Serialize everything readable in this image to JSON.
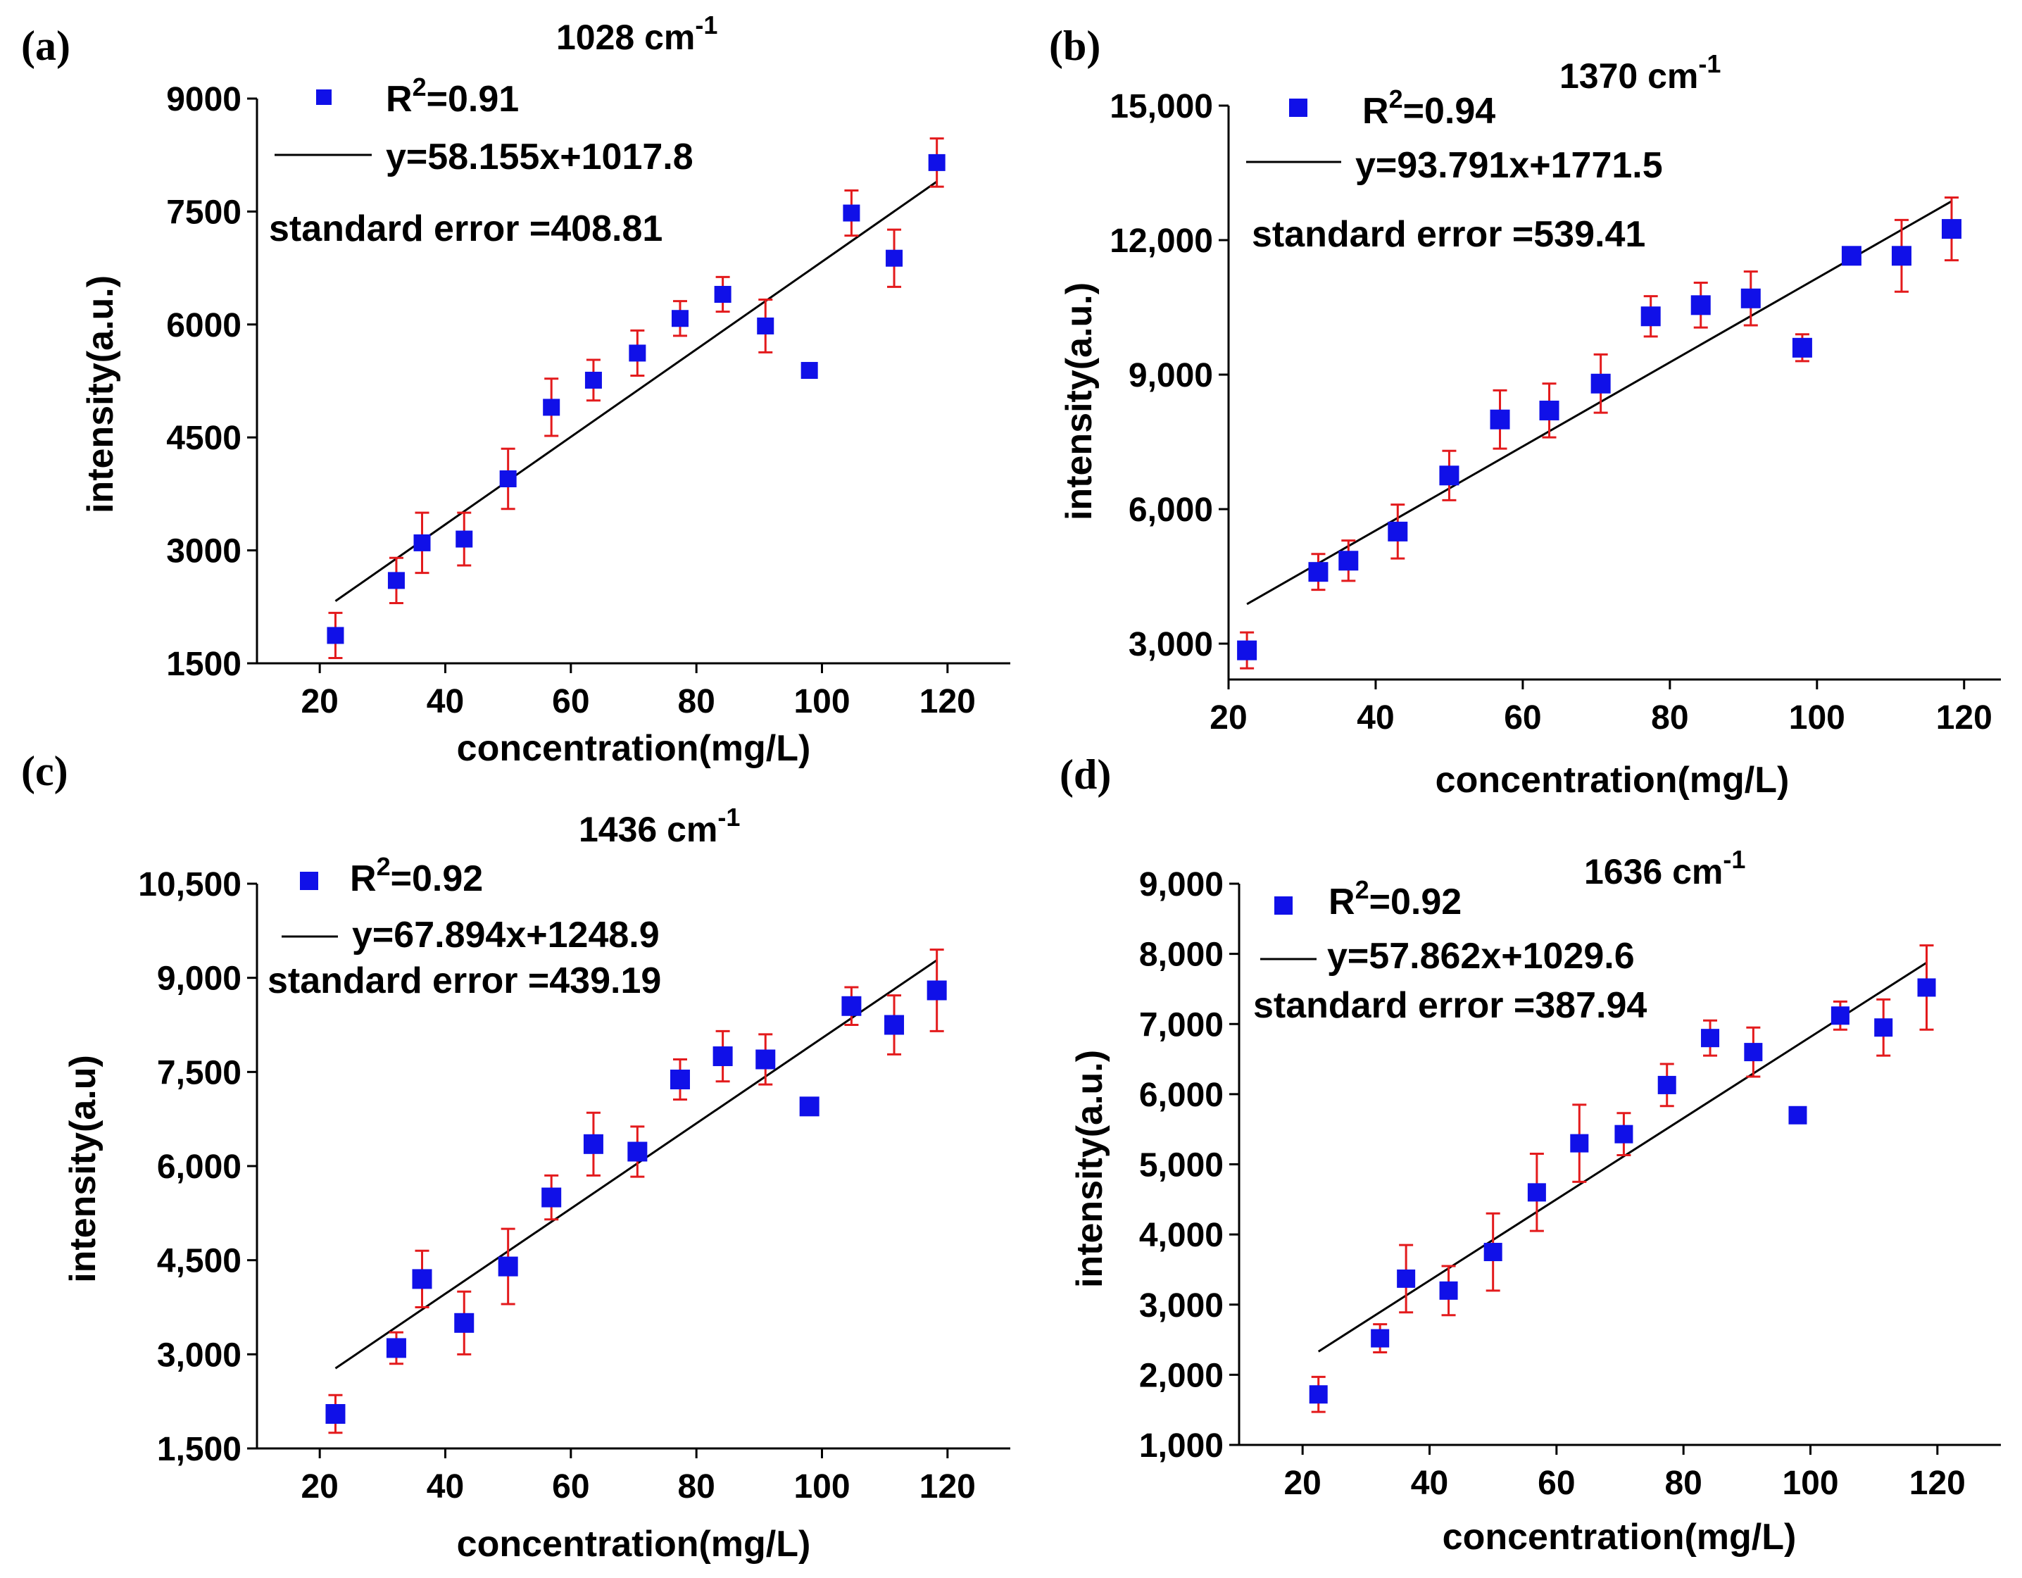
{
  "chart_data": [
    {
      "type": "scatter",
      "panel_label": "(a)",
      "title_main": "1028 cm",
      "title_sup": "-1",
      "xlabel": "concentration(mg/L)",
      "ylabel": "intensity(a.u.)",
      "xlim": [
        10,
        130
      ],
      "ylim": [
        1500,
        9000
      ],
      "xticks": [
        20,
        40,
        60,
        80,
        100,
        120
      ],
      "xtick_labels": [
        "20",
        "40",
        "60",
        "80",
        "100",
        "120"
      ],
      "yticks": [
        1500,
        3000,
        4500,
        6000,
        7500,
        9000
      ],
      "ytick_labels": [
        "1500",
        "3000",
        "4500",
        "6000",
        "7500",
        "9000"
      ],
      "legend_r2_label": "R",
      "legend_r2_sup": "2",
      "legend_r2_value": "=0.91",
      "legend_fit_label": "y=58.155x+1017.8",
      "standard_error_label": "standard error =408.81",
      "fit": {
        "slope": 58.155,
        "intercept": 1017.8,
        "x_range": [
          22.5,
          118.3
        ]
      },
      "points": [
        {
          "x": 22.5,
          "y": 1870,
          "err": 300
        },
        {
          "x": 32.2,
          "y": 2600,
          "err": 300
        },
        {
          "x": 36.3,
          "y": 3100,
          "err": 400
        },
        {
          "x": 43.0,
          "y": 3150,
          "err": 350
        },
        {
          "x": 50.0,
          "y": 3950,
          "err": 400
        },
        {
          "x": 56.9,
          "y": 4900,
          "err": 380
        },
        {
          "x": 63.6,
          "y": 5260,
          "err": 270
        },
        {
          "x": 70.6,
          "y": 5620,
          "err": 300
        },
        {
          "x": 77.4,
          "y": 6080,
          "err": 230
        },
        {
          "x": 84.2,
          "y": 6400,
          "err": 230
        },
        {
          "x": 91.0,
          "y": 5980,
          "err": 350
        },
        {
          "x": 98.0,
          "y": 5390,
          "err": 30
        },
        {
          "x": 104.7,
          "y": 7480,
          "err": 300
        },
        {
          "x": 111.5,
          "y": 6880,
          "err": 380
        },
        {
          "x": 118.3,
          "y": 8150,
          "err": 320
        }
      ]
    },
    {
      "type": "scatter",
      "panel_label": "(b)",
      "title_main": "1370 cm",
      "title_sup": "-1",
      "xlabel": "concentration(mg/L)",
      "ylabel": "intensity(a.u.)",
      "xlim": [
        20,
        125
      ],
      "ylim": [
        2200,
        15000
      ],
      "xticks": [
        20,
        40,
        60,
        80,
        100,
        120
      ],
      "xtick_labels": [
        "20",
        "40",
        "60",
        "80",
        "100",
        "120"
      ],
      "yticks": [
        3000,
        6000,
        9000,
        12000,
        15000
      ],
      "ytick_labels": [
        "3,000",
        "6,000",
        "9,000",
        "12,000",
        "15,000"
      ],
      "legend_r2_label": "R",
      "legend_r2_sup": "2",
      "legend_r2_value": "=0.94",
      "legend_fit_label": "y=93.791x+1771.5",
      "standard_error_label": "standard error =539.41",
      "fit": {
        "slope": 93.791,
        "intercept": 1771.5,
        "x_range": [
          22.5,
          118.3
        ]
      },
      "points": [
        {
          "x": 22.5,
          "y": 2850,
          "err": 400
        },
        {
          "x": 32.2,
          "y": 4600,
          "err": 400
        },
        {
          "x": 36.3,
          "y": 4850,
          "err": 450
        },
        {
          "x": 43.0,
          "y": 5500,
          "err": 600
        },
        {
          "x": 50.0,
          "y": 6750,
          "err": 550
        },
        {
          "x": 56.9,
          "y": 8000,
          "err": 650
        },
        {
          "x": 63.6,
          "y": 8200,
          "err": 600
        },
        {
          "x": 70.6,
          "y": 8800,
          "err": 650
        },
        {
          "x": 77.4,
          "y": 10300,
          "err": 450
        },
        {
          "x": 84.2,
          "y": 10550,
          "err": 500
        },
        {
          "x": 91.0,
          "y": 10700,
          "err": 600
        },
        {
          "x": 98.0,
          "y": 9600,
          "err": 300
        },
        {
          "x": 104.7,
          "y": 11650,
          "err": 150
        },
        {
          "x": 111.5,
          "y": 11650,
          "err": 800
        },
        {
          "x": 118.3,
          "y": 12250,
          "err": 700
        }
      ]
    },
    {
      "type": "scatter",
      "panel_label": "(c)",
      "title_main": "1436 cm",
      "title_sup": "-1",
      "xlabel": "concentration(mg/L)",
      "ylabel": "intensity(a.u)",
      "xlim": [
        10,
        130
      ],
      "ylim": [
        1500,
        10500
      ],
      "xticks": [
        20,
        40,
        60,
        80,
        100,
        120
      ],
      "xtick_labels": [
        "20",
        "40",
        "60",
        "80",
        "100",
        "120"
      ],
      "yticks": [
        1500,
        3000,
        4500,
        6000,
        7500,
        9000,
        10500
      ],
      "ytick_labels": [
        "1,500",
        "3,000",
        "4,500",
        "6,000",
        "7,500",
        "9,000",
        "10,500"
      ],
      "legend_r2_label": "R",
      "legend_r2_sup": "2",
      "legend_r2_value": "=0.92",
      "legend_fit_label": "y=67.894x+1248.9",
      "standard_error_label": "standard error =439.19",
      "fit": {
        "slope": 67.894,
        "intercept": 1248.9,
        "x_range": [
          22.5,
          118.3
        ]
      },
      "points": [
        {
          "x": 22.5,
          "y": 2050,
          "err": 300
        },
        {
          "x": 32.2,
          "y": 3100,
          "err": 250
        },
        {
          "x": 36.3,
          "y": 4200,
          "err": 450
        },
        {
          "x": 43.0,
          "y": 3500,
          "err": 500
        },
        {
          "x": 50.0,
          "y": 4400,
          "err": 600
        },
        {
          "x": 56.9,
          "y": 5500,
          "err": 350
        },
        {
          "x": 63.6,
          "y": 6350,
          "err": 500
        },
        {
          "x": 70.6,
          "y": 6230,
          "err": 400
        },
        {
          "x": 77.4,
          "y": 7380,
          "err": 320
        },
        {
          "x": 84.2,
          "y": 7750,
          "err": 400
        },
        {
          "x": 91.0,
          "y": 7700,
          "err": 400
        },
        {
          "x": 98.0,
          "y": 6950,
          "err": 80
        },
        {
          "x": 104.7,
          "y": 8550,
          "err": 300
        },
        {
          "x": 111.5,
          "y": 8250,
          "err": 470
        },
        {
          "x": 118.3,
          "y": 8800,
          "err": 650
        }
      ]
    },
    {
      "type": "scatter",
      "panel_label": "(d)",
      "title_main": "1636 cm",
      "title_sup": "-1",
      "xlabel": "concentration(mg/L)",
      "ylabel": "intensity(a.u.)",
      "xlim": [
        10,
        130
      ],
      "ylim": [
        1000,
        9000
      ],
      "xticks": [
        20,
        40,
        60,
        80,
        100,
        120
      ],
      "xtick_labels": [
        "20",
        "40",
        "60",
        "80",
        "100",
        "120"
      ],
      "yticks": [
        1000,
        2000,
        3000,
        4000,
        5000,
        6000,
        7000,
        8000,
        9000
      ],
      "ytick_labels": [
        "1,000",
        "2,000",
        "3,000",
        "4,000",
        "5,000",
        "6,000",
        "7,000",
        "8,000",
        "9,000"
      ],
      "legend_r2_label": "R",
      "legend_r2_sup": "2",
      "legend_r2_value": "=0.92",
      "legend_fit_label": "y=57.862x+1029.6",
      "standard_error_label": "standard error =387.94",
      "fit": {
        "slope": 57.862,
        "intercept": 1029.6,
        "x_range": [
          22.5,
          118.3
        ]
      },
      "points": [
        {
          "x": 22.5,
          "y": 1720,
          "err": 250
        },
        {
          "x": 32.2,
          "y": 2520,
          "err": 200
        },
        {
          "x": 36.3,
          "y": 3370,
          "err": 480
        },
        {
          "x": 43.0,
          "y": 3200,
          "err": 350
        },
        {
          "x": 50.0,
          "y": 3750,
          "err": 550
        },
        {
          "x": 56.9,
          "y": 4600,
          "err": 550
        },
        {
          "x": 63.6,
          "y": 5300,
          "err": 550
        },
        {
          "x": 70.6,
          "y": 5430,
          "err": 300
        },
        {
          "x": 77.4,
          "y": 6130,
          "err": 300
        },
        {
          "x": 84.2,
          "y": 6800,
          "err": 250
        },
        {
          "x": 91.0,
          "y": 6600,
          "err": 350
        },
        {
          "x": 98.0,
          "y": 5700,
          "err": 80
        },
        {
          "x": 104.7,
          "y": 7120,
          "err": 200
        },
        {
          "x": 111.5,
          "y": 6950,
          "err": 400
        },
        {
          "x": 118.3,
          "y": 7520,
          "err": 600
        }
      ]
    }
  ],
  "colors": {
    "marker": "#1010e8",
    "error_bar": "#e31a1c",
    "fit_line": "#000000",
    "axis": "#000000"
  }
}
